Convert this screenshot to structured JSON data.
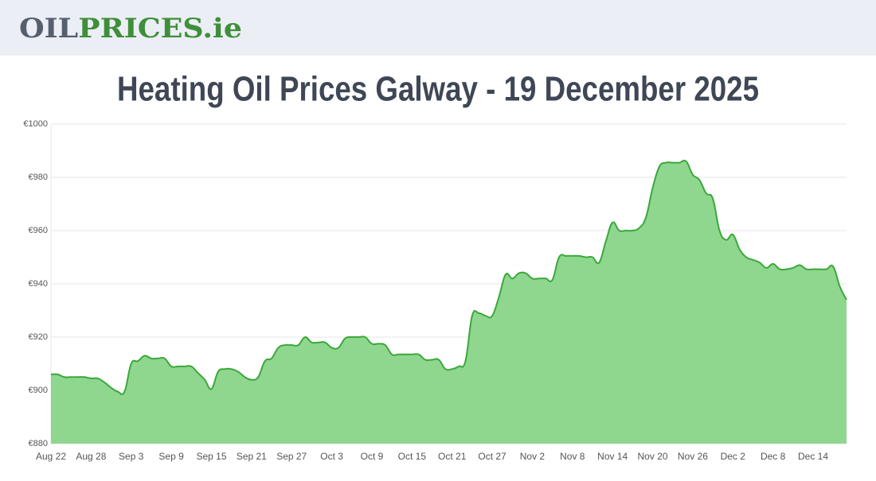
{
  "header": {
    "logo_gray": "OIL",
    "logo_green": "PRICES.ie"
  },
  "chart_data": {
    "type": "area",
    "title": "Heating Oil Prices Galway - 19 December 2025",
    "categories": [
      "Aug 22",
      null,
      null,
      null,
      null,
      null,
      "Aug 28",
      null,
      null,
      null,
      null,
      null,
      "Sep 3",
      null,
      null,
      null,
      null,
      null,
      "Sep 9",
      null,
      null,
      null,
      null,
      null,
      "Sep 15",
      null,
      null,
      null,
      null,
      null,
      "Sep 21",
      null,
      null,
      null,
      null,
      null,
      "Sep 27",
      null,
      null,
      null,
      null,
      null,
      "Oct 3",
      null,
      null,
      null,
      null,
      null,
      "Oct 9",
      null,
      null,
      null,
      null,
      null,
      "Oct 15",
      null,
      null,
      null,
      null,
      null,
      "Oct 21",
      null,
      null,
      null,
      null,
      null,
      "Oct 27",
      null,
      null,
      null,
      null,
      null,
      "Nov 2",
      null,
      null,
      null,
      null,
      null,
      "Nov 8",
      null,
      null,
      null,
      null,
      null,
      "Nov 14",
      null,
      null,
      null,
      null,
      null,
      "Nov 20",
      null,
      null,
      null,
      null,
      null,
      "Nov 26",
      null,
      null,
      null,
      null,
      null,
      "Dec 2",
      null,
      null,
      null,
      null,
      null,
      "Dec 8",
      null,
      null,
      null,
      null,
      null,
      "Dec 14",
      null,
      null,
      null,
      null,
      null
    ],
    "values": [
      906,
      906,
      905,
      905,
      905,
      905,
      904.5,
      904.5,
      903,
      901,
      899.5,
      899.5,
      910,
      911,
      913,
      912,
      912,
      912,
      909,
      909,
      909,
      909,
      906.5,
      904,
      900.5,
      907,
      908,
      908,
      907,
      905,
      904,
      905,
      911,
      912,
      916,
      917,
      917,
      917,
      920,
      918,
      918,
      918,
      916,
      916,
      919.5,
      920,
      920,
      920,
      917.5,
      917.5,
      917,
      913.5,
      913.5,
      913.5,
      913.5,
      913.5,
      911.5,
      911.5,
      911.5,
      908,
      908,
      909,
      911,
      928,
      929,
      928,
      928,
      935,
      943.5,
      942,
      944,
      944,
      942,
      942,
      942,
      941.5,
      950,
      950.5,
      950.5,
      950.5,
      950,
      950,
      948,
      956,
      963,
      960,
      960,
      960,
      961,
      965,
      976,
      984,
      985.5,
      985.5,
      985.5,
      986,
      981,
      979,
      974,
      972,
      960,
      956.5,
      958.5,
      953,
      950,
      949,
      948,
      946,
      947.5,
      945.5,
      945.5,
      946,
      947,
      945.5,
      945.5,
      945.5,
      945.5,
      946.5,
      939,
      934
    ],
    "color": "#3aa83a",
    "fill_color": "#8fd68f",
    "ylim": [
      880,
      1000
    ],
    "yticks": [
      {
        "value": 880,
        "label": "€880"
      },
      {
        "value": 900,
        "label": "€900"
      },
      {
        "value": 920,
        "label": "€920"
      },
      {
        "value": 940,
        "label": "€940"
      },
      {
        "value": 960,
        "label": "€960"
      },
      {
        "value": 980,
        "label": "€980"
      },
      {
        "value": 1000,
        "label": "€1000"
      }
    ],
    "grid": true
  }
}
